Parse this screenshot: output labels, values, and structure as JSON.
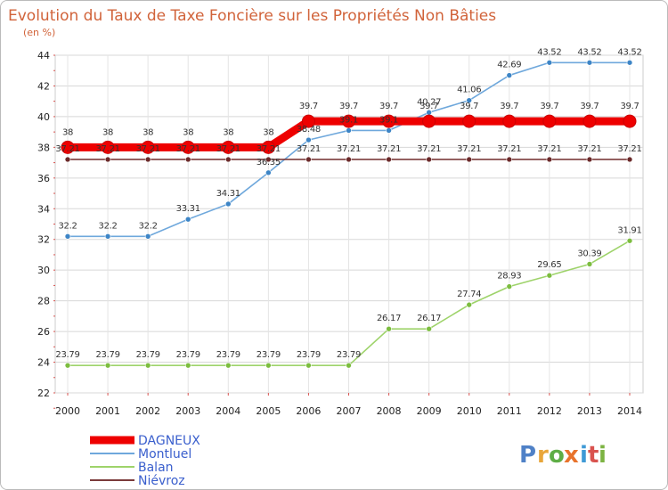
{
  "chart_data": {
    "type": "line",
    "title": "Evolution du Taux de Taxe Foncière sur les Propriétés Non Bâties",
    "subtitle": "(en %)",
    "xlabel": "",
    "ylabel": "",
    "x": [
      "2000",
      "2001",
      "2002",
      "2003",
      "2004",
      "2005",
      "2006",
      "2007",
      "2008",
      "2009",
      "2010",
      "2011",
      "2012",
      "2013",
      "2014"
    ],
    "ylim": [
      22,
      44
    ],
    "yticks": [
      22,
      24,
      26,
      28,
      30,
      32,
      34,
      36,
      38,
      40,
      42,
      44
    ],
    "grid": true,
    "legend_position": "bottom-left",
    "series": [
      {
        "name": "DAGNEUX",
        "color": "#ee0000",
        "values": [
          38,
          38,
          38,
          38,
          38,
          38,
          39.7,
          39.7,
          39.7,
          39.7,
          39.7,
          39.7,
          39.7,
          39.7,
          39.7
        ],
        "labels": [
          "38",
          "38",
          "38",
          "38",
          "38",
          "38",
          "39.7",
          "39.7",
          "39.7",
          "39.7",
          "39.7",
          "39.7",
          "39.7",
          "39.7",
          "39.7"
        ]
      },
      {
        "name": "Montluel",
        "color": "#6fa8dc",
        "marker": "#3d85c6",
        "values": [
          32.2,
          32.2,
          32.2,
          33.31,
          34.31,
          36.35,
          38.48,
          39.1,
          39.1,
          40.27,
          41.06,
          42.69,
          43.52,
          43.52,
          43.52
        ],
        "labels": [
          "32.2",
          "32.2",
          "32.2",
          "33.31",
          "34.31",
          "36.35",
          "38.48",
          "39.1",
          "39.1",
          "40.27",
          "41.06",
          "42.69",
          "43.52",
          "43.52",
          "43.52"
        ]
      },
      {
        "name": "Balan",
        "color": "#9ed36a",
        "marker": "#7cbd3f",
        "values": [
          23.79,
          23.79,
          23.79,
          23.79,
          23.79,
          23.79,
          23.79,
          23.79,
          26.17,
          26.17,
          27.74,
          28.93,
          29.65,
          30.39,
          31.91
        ],
        "labels": [
          "23.79",
          "23.79",
          "23.79",
          "23.79",
          "23.79",
          "23.79",
          "23.79",
          "23.79",
          "26.17",
          "26.17",
          "27.74",
          "28.93",
          "29.65",
          "30.39",
          "31.91"
        ]
      },
      {
        "name": "Niévroz",
        "color": "#7b3b3b",
        "marker": "#6b2a2a",
        "values": [
          37.21,
          37.21,
          37.21,
          37.21,
          37.21,
          37.21,
          37.21,
          37.21,
          37.21,
          37.21,
          37.21,
          37.21,
          37.21,
          37.21,
          37.21
        ],
        "labels": [
          "37.21",
          "37.21",
          "37.21",
          "37.21",
          "37.21",
          "37.21",
          "37.21",
          "37.21",
          "37.21",
          "37.21",
          "37.21",
          "37.21",
          "37.21",
          "37.21",
          "37.21"
        ]
      }
    ]
  },
  "logo": {
    "letters": [
      "P",
      "r",
      "o",
      "x",
      "i",
      "t",
      "i"
    ],
    "colors": [
      "#4f81c7",
      "#e8a63a",
      "#5fae46",
      "#e8732c",
      "#3f9ad6",
      "#d9534f",
      "#7cb342"
    ]
  }
}
